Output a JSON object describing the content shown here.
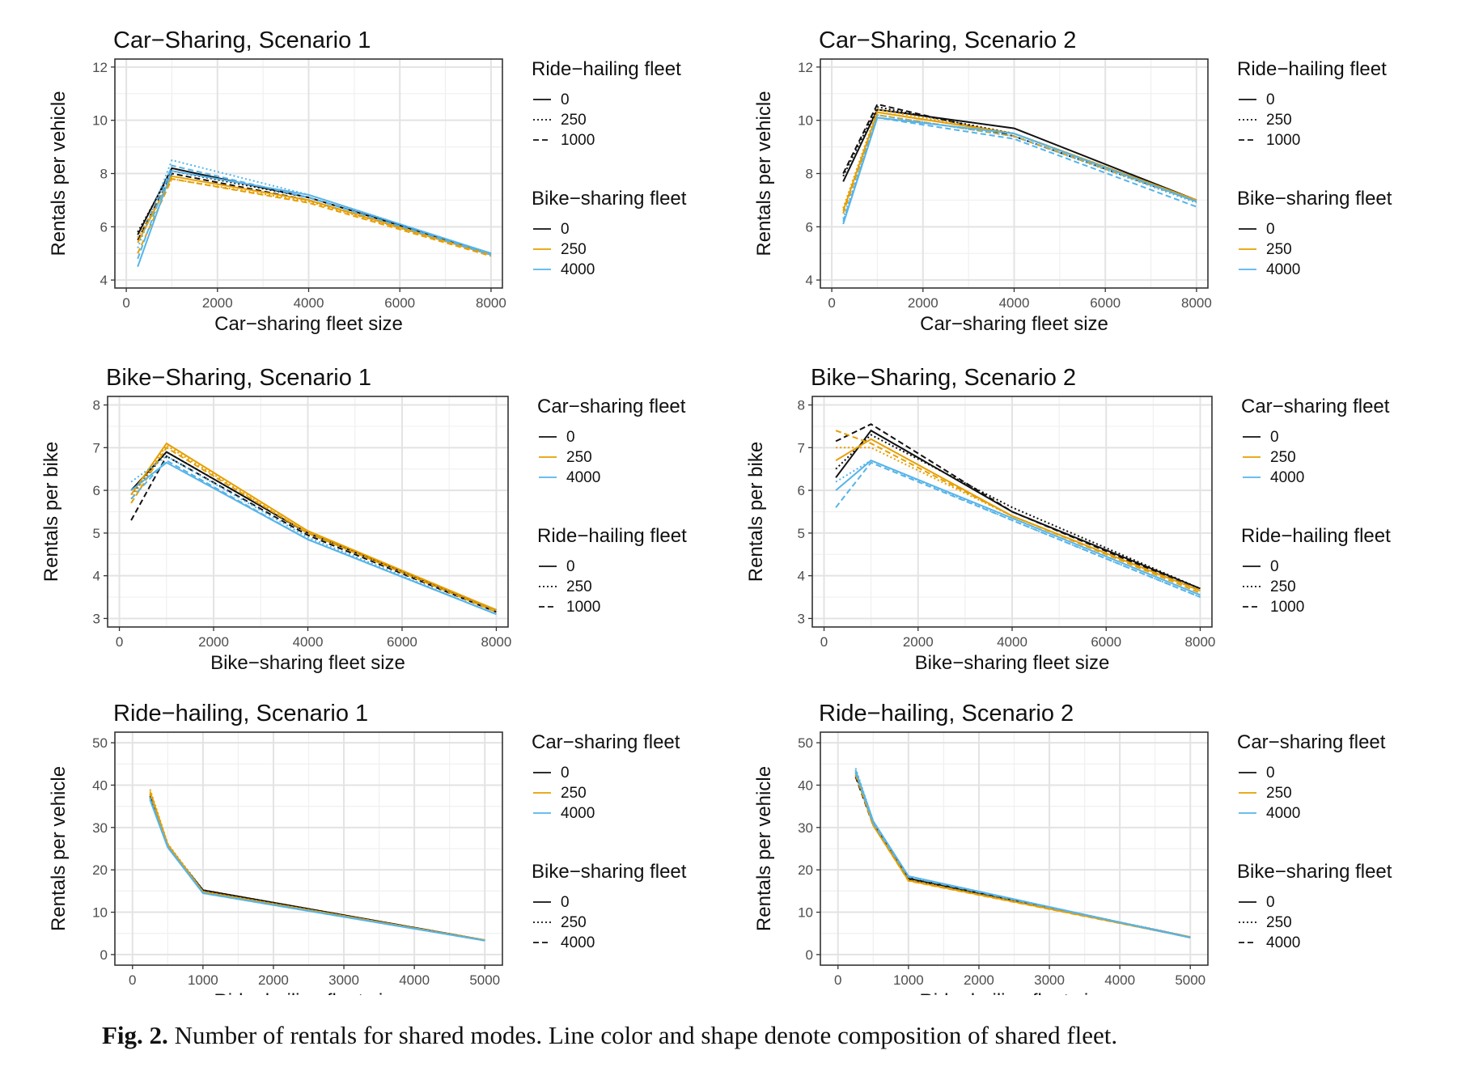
{
  "caption": {
    "label": "Fig. 2.",
    "text": "Number of rentals for shared modes. Line color and shape denote composition of shared fleet."
  },
  "colors": {
    "0": "#111111",
    "250": "#E69F00",
    "4000": "#56B4E9"
  },
  "chart_data": [
    {
      "type": "line",
      "title": "Car−Sharing, Scenario 1",
      "xlabel": "Car−sharing fleet size",
      "ylabel": "Rentals per vehicle",
      "xlim": [
        -250,
        8250
      ],
      "ylim": [
        3.7,
        12.3
      ],
      "xticks": [
        0,
        2000,
        4000,
        6000,
        8000
      ],
      "yticks": [
        4,
        6,
        8,
        10,
        12
      ],
      "grid": true,
      "x": [
        250,
        1000,
        4000,
        8000
      ],
      "legends": [
        {
          "title": "Ride−hailing fleet",
          "aes": "linetype",
          "entries": [
            "0",
            "250",
            "1000"
          ]
        },
        {
          "title": "Bike−sharing fleet",
          "aes": "color",
          "entries": [
            "0",
            "250",
            "4000"
          ]
        }
      ],
      "series": [
        {
          "color": "0",
          "linetype": "0",
          "values": [
            5.7,
            8.2,
            7.1,
            5.0
          ]
        },
        {
          "color": "0",
          "linetype": "250",
          "values": [
            5.8,
            8.1,
            7.1,
            5.0
          ]
        },
        {
          "color": "0",
          "linetype": "1000",
          "values": [
            5.5,
            8.0,
            7.0,
            4.95
          ]
        },
        {
          "color": "250",
          "linetype": "0",
          "values": [
            5.4,
            7.9,
            7.0,
            4.95
          ]
        },
        {
          "color": "250",
          "linetype": "250",
          "values": [
            5.6,
            7.8,
            6.95,
            4.95
          ]
        },
        {
          "color": "250",
          "linetype": "1000",
          "values": [
            5.0,
            7.8,
            6.9,
            4.9
          ]
        },
        {
          "color": "4000",
          "linetype": "0",
          "values": [
            4.5,
            8.1,
            7.2,
            5.0
          ]
        },
        {
          "color": "4000",
          "linetype": "250",
          "values": [
            5.2,
            8.5,
            7.2,
            5.0
          ]
        },
        {
          "color": "4000",
          "linetype": "1000",
          "values": [
            4.8,
            8.3,
            7.1,
            4.95
          ]
        }
      ]
    },
    {
      "type": "line",
      "title": "Car−Sharing, Scenario 2",
      "xlabel": "Car−sharing fleet size",
      "ylabel": "Rentals per vehicle",
      "xlim": [
        -250,
        8250
      ],
      "ylim": [
        3.7,
        12.3
      ],
      "xticks": [
        0,
        2000,
        4000,
        6000,
        8000
      ],
      "yticks": [
        4,
        6,
        8,
        10,
        12
      ],
      "grid": true,
      "x": [
        250,
        1000,
        4000,
        8000
      ],
      "legends": [
        {
          "title": "Ride−hailing fleet",
          "aes": "linetype",
          "entries": [
            "0",
            "250",
            "1000"
          ]
        },
        {
          "title": "Bike−sharing fleet",
          "aes": "color",
          "entries": [
            "0",
            "250",
            "4000"
          ]
        }
      ],
      "series": [
        {
          "color": "0",
          "linetype": "0",
          "values": [
            7.7,
            10.4,
            9.7,
            7.0
          ]
        },
        {
          "color": "0",
          "linetype": "250",
          "values": [
            7.9,
            10.5,
            9.5,
            7.0
          ]
        },
        {
          "color": "0",
          "linetype": "1000",
          "values": [
            8.0,
            10.6,
            9.4,
            6.95
          ]
        },
        {
          "color": "250",
          "linetype": "0",
          "values": [
            6.6,
            10.3,
            9.5,
            7.0
          ]
        },
        {
          "color": "250",
          "linetype": "250",
          "values": [
            6.7,
            10.4,
            9.5,
            7.0
          ]
        },
        {
          "color": "250",
          "linetype": "1000",
          "values": [
            6.5,
            10.2,
            9.4,
            6.95
          ]
        },
        {
          "color": "4000",
          "linetype": "0",
          "values": [
            6.1,
            10.1,
            9.5,
            6.95
          ]
        },
        {
          "color": "4000",
          "linetype": "250",
          "values": [
            6.3,
            10.2,
            9.4,
            6.9
          ]
        },
        {
          "color": "4000",
          "linetype": "1000",
          "values": [
            6.2,
            10.1,
            9.3,
            6.75
          ]
        }
      ]
    },
    {
      "type": "line",
      "title": "Bike−Sharing, Scenario 1",
      "xlabel": "Bike−sharing fleet size",
      "ylabel": "Rentals per bike",
      "xlim": [
        -250,
        8250
      ],
      "ylim": [
        2.8,
        8.2
      ],
      "xticks": [
        0,
        2000,
        4000,
        6000,
        8000
      ],
      "yticks": [
        3,
        4,
        5,
        6,
        7,
        8
      ],
      "grid": true,
      "x": [
        250,
        1000,
        4000,
        8000
      ],
      "legends": [
        {
          "title": "Car−sharing fleet",
          "aes": "color",
          "entries": [
            "0",
            "250",
            "4000"
          ]
        },
        {
          "title": "Ride−hailing fleet",
          "aes": "linetype",
          "entries": [
            "0",
            "250",
            "1000"
          ]
        }
      ],
      "series": [
        {
          "color": "0",
          "linetype": "0",
          "values": [
            6.0,
            6.9,
            5.0,
            3.2
          ]
        },
        {
          "color": "0",
          "linetype": "250",
          "values": [
            5.9,
            6.9,
            5.0,
            3.2
          ]
        },
        {
          "color": "0",
          "linetype": "1000",
          "values": [
            5.3,
            6.8,
            4.95,
            3.15
          ]
        },
        {
          "color": "250",
          "linetype": "0",
          "values": [
            5.9,
            7.1,
            5.05,
            3.2
          ]
        },
        {
          "color": "250",
          "linetype": "250",
          "values": [
            5.8,
            7.05,
            5.0,
            3.2
          ]
        },
        {
          "color": "250",
          "linetype": "1000",
          "values": [
            5.7,
            7.0,
            5.0,
            3.15
          ]
        },
        {
          "color": "4000",
          "linetype": "0",
          "values": [
            6.0,
            6.65,
            4.85,
            3.1
          ]
        },
        {
          "color": "4000",
          "linetype": "250",
          "values": [
            6.2,
            6.8,
            4.9,
            3.1
          ]
        },
        {
          "color": "4000",
          "linetype": "1000",
          "values": [
            5.8,
            6.7,
            4.85,
            3.1
          ]
        }
      ]
    },
    {
      "type": "line",
      "title": "Bike−Sharing, Scenario 2",
      "xlabel": "Bike−sharing fleet size",
      "ylabel": "Rentals per bike",
      "xlim": [
        -250,
        8250
      ],
      "ylim": [
        2.8,
        8.2
      ],
      "xticks": [
        0,
        2000,
        4000,
        6000,
        8000
      ],
      "yticks": [
        3,
        4,
        5,
        6,
        7,
        8
      ],
      "grid": true,
      "x": [
        250,
        1000,
        4000,
        8000
      ],
      "legends": [
        {
          "title": "Car−sharing fleet",
          "aes": "color",
          "entries": [
            "0",
            "250",
            "4000"
          ]
        },
        {
          "title": "Ride−hailing fleet",
          "aes": "linetype",
          "entries": [
            "0",
            "250",
            "1000"
          ]
        }
      ],
      "series": [
        {
          "color": "0",
          "linetype": "0",
          "values": [
            6.3,
            7.4,
            5.5,
            3.7
          ]
        },
        {
          "color": "0",
          "linetype": "250",
          "values": [
            6.5,
            7.3,
            5.6,
            3.7
          ]
        },
        {
          "color": "0",
          "linetype": "1000",
          "values": [
            7.15,
            7.55,
            5.5,
            3.65
          ]
        },
        {
          "color": "250",
          "linetype": "0",
          "values": [
            6.7,
            7.2,
            5.4,
            3.65
          ]
        },
        {
          "color": "250",
          "linetype": "250",
          "values": [
            7.0,
            7.0,
            5.4,
            3.65
          ]
        },
        {
          "color": "250",
          "linetype": "1000",
          "values": [
            7.4,
            7.1,
            5.4,
            3.6
          ]
        },
        {
          "color": "4000",
          "linetype": "0",
          "values": [
            6.0,
            6.7,
            5.35,
            3.55
          ]
        },
        {
          "color": "4000",
          "linetype": "250",
          "values": [
            6.2,
            6.7,
            5.3,
            3.5
          ]
        },
        {
          "color": "4000",
          "linetype": "1000",
          "values": [
            5.6,
            6.65,
            5.3,
            3.5
          ]
        }
      ]
    },
    {
      "type": "line",
      "title": "Ride−hailing, Scenario 1",
      "xlabel": "Ride−hailing fleet size",
      "ylabel": "Rentals per vehicle",
      "xlim": [
        -250,
        5250
      ],
      "ylim": [
        -2.5,
        52.5
      ],
      "xticks": [
        0,
        1000,
        2000,
        3000,
        4000,
        5000
      ],
      "yticks": [
        0,
        10,
        20,
        30,
        40,
        50
      ],
      "grid": true,
      "x": [
        250,
        500,
        1000,
        5000
      ],
      "legends": [
        {
          "title": "Car−sharing fleet",
          "aes": "color",
          "entries": [
            "0",
            "250",
            "4000"
          ]
        },
        {
          "title": "Bike−sharing fleet",
          "aes": "linetype",
          "entries": [
            "0",
            "250",
            "4000"
          ]
        }
      ],
      "series": [
        {
          "color": "0",
          "linetype": "0",
          "values": [
            37,
            25.5,
            15.2,
            3.4
          ]
        },
        {
          "color": "0",
          "linetype": "250",
          "values": [
            38,
            26,
            15.2,
            3.4
          ]
        },
        {
          "color": "0",
          "linetype": "4000",
          "values": [
            37.5,
            25.8,
            15.0,
            3.35
          ]
        },
        {
          "color": "250",
          "linetype": "0",
          "values": [
            38.5,
            26,
            14.8,
            3.4
          ]
        },
        {
          "color": "250",
          "linetype": "250",
          "values": [
            39,
            26.2,
            14.9,
            3.4
          ]
        },
        {
          "color": "250",
          "linetype": "4000",
          "values": [
            38,
            25.9,
            14.7,
            3.35
          ]
        },
        {
          "color": "4000",
          "linetype": "0",
          "values": [
            36.5,
            25.3,
            14.5,
            3.3
          ]
        },
        {
          "color": "4000",
          "linetype": "250",
          "values": [
            37,
            25.5,
            14.6,
            3.3
          ]
        },
        {
          "color": "4000",
          "linetype": "4000",
          "values": [
            36.8,
            25.4,
            14.5,
            3.3
          ]
        }
      ]
    },
    {
      "type": "line",
      "title": "Ride−hailing, Scenario 2",
      "xlabel": "Ride−hailing fleet size",
      "ylabel": "Rentals per vehicle",
      "xlim": [
        -250,
        5250
      ],
      "ylim": [
        -2.5,
        52.5
      ],
      "xticks": [
        0,
        1000,
        2000,
        3000,
        4000,
        5000
      ],
      "yticks": [
        0,
        10,
        20,
        30,
        40,
        50
      ],
      "grid": true,
      "x": [
        250,
        500,
        1000,
        5000
      ],
      "legends": [
        {
          "title": "Car−sharing fleet",
          "aes": "color",
          "entries": [
            "0",
            "250",
            "4000"
          ]
        },
        {
          "title": "Bike−sharing fleet",
          "aes": "linetype",
          "entries": [
            "0",
            "250",
            "4000"
          ]
        }
      ],
      "series": [
        {
          "color": "0",
          "linetype": "0",
          "values": [
            42.5,
            31,
            18.0,
            4.1
          ]
        },
        {
          "color": "0",
          "linetype": "250",
          "values": [
            43,
            31,
            18.2,
            4.1
          ]
        },
        {
          "color": "0",
          "linetype": "4000",
          "values": [
            42,
            30.5,
            17.8,
            4.05
          ]
        },
        {
          "color": "250",
          "linetype": "0",
          "values": [
            43,
            30.5,
            17.5,
            4.1
          ]
        },
        {
          "color": "250",
          "linetype": "250",
          "values": [
            43.5,
            31,
            17.6,
            4.1
          ]
        },
        {
          "color": "250",
          "linetype": "4000",
          "values": [
            42.5,
            30.5,
            17.4,
            4.05
          ]
        },
        {
          "color": "4000",
          "linetype": "0",
          "values": [
            43.5,
            31.5,
            18.5,
            4.0
          ]
        },
        {
          "color": "4000",
          "linetype": "250",
          "values": [
            44,
            31.5,
            18.5,
            4.0
          ]
        },
        {
          "color": "4000",
          "linetype": "4000",
          "values": [
            43,
            31,
            18.3,
            4.0
          ]
        }
      ]
    }
  ]
}
